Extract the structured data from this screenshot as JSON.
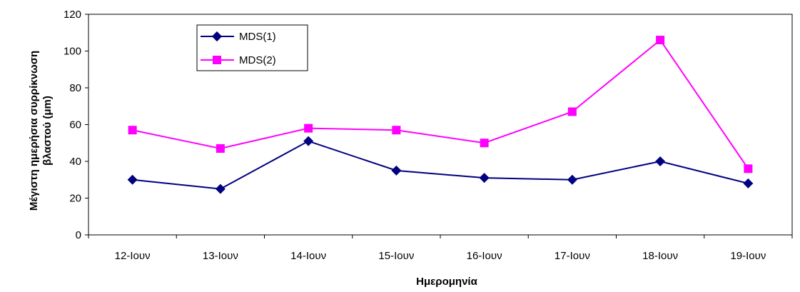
{
  "chart_data": {
    "type": "line",
    "title": "",
    "xlabel": "Ημερομηνία",
    "ylabel_lines": [
      "Μέγιστη ημερήσια συρρίκνωση",
      "βλαστού (μm)"
    ],
    "categories": [
      "12-Ιουν",
      "13-Ιουν",
      "14-Ιουν",
      "15-Ιουν",
      "16-Ιουν",
      "17-Ιουν",
      "18-Ιουν",
      "19-Ιουν"
    ],
    "ylim": [
      0,
      120
    ],
    "yticks": [
      0,
      20,
      40,
      60,
      80,
      100,
      120
    ],
    "series": [
      {
        "name": "MDS(1)",
        "values": [
          30,
          25,
          51,
          35,
          31,
          30,
          40,
          28
        ],
        "color": "#000080",
        "marker": "diamond"
      },
      {
        "name": "MDS(2)",
        "values": [
          57,
          47,
          58,
          57,
          50,
          67,
          106,
          36
        ],
        "color": "#FF00FF",
        "marker": "square"
      }
    ],
    "grid": false,
    "legend_position": "top-left"
  }
}
